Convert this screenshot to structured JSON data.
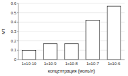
{
  "chart_data": {
    "type": "bar",
    "categories": [
      "1x10-10",
      "1x10-9",
      "1x10-8",
      "1x10-7",
      "1x10-6"
    ],
    "values": [
      0.1,
      0.17,
      0.17,
      0.42,
      0.57
    ],
    "xlabel": "концентрация (моль/л)",
    "ylabel": "мт",
    "color": "white",
    "ylim": [
      0,
      0.6
    ],
    "yticks": [
      0,
      0.1,
      0.2,
      0.3,
      0.4,
      0.5,
      0.6
    ],
    "grid": true
  }
}
